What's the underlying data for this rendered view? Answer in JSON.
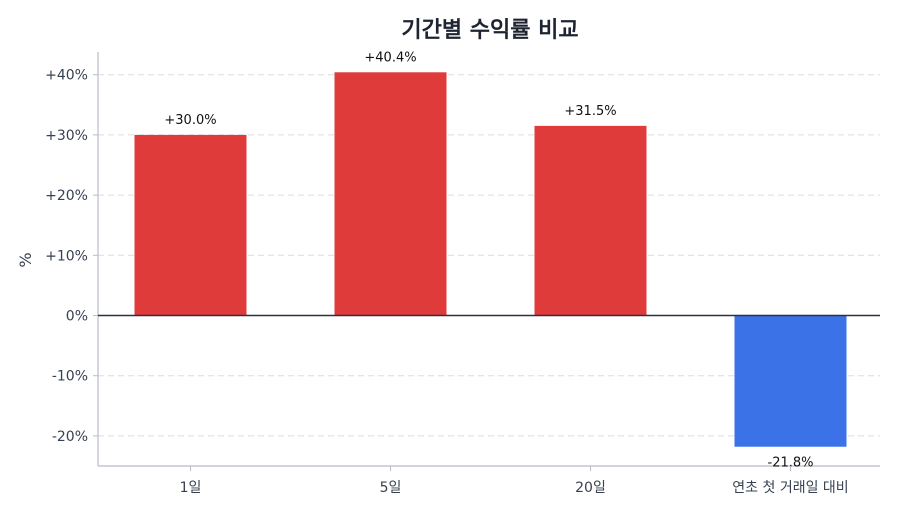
{
  "chart_data": {
    "type": "bar",
    "title": "기간별 수익률 비교",
    "xlabel": "",
    "ylabel": "%",
    "categories": [
      "1일",
      "5일",
      "20일",
      "연초 첫 거래일 대비"
    ],
    "values": [
      30.0,
      40.4,
      31.5,
      -21.8
    ],
    "value_labels": [
      "+30.0%",
      "+40.4%",
      "+31.5%",
      "-21.8%"
    ],
    "yticks": [
      40,
      30,
      20,
      10,
      0,
      -10,
      -20
    ],
    "ytick_labels": [
      "+40%",
      "+30%",
      "+20%",
      "+10%",
      "0%",
      "-10%",
      "-20%"
    ],
    "ylim": [
      -25,
      44
    ],
    "grid": true,
    "colors": {
      "positive": "#e03b3b",
      "negative": "#3b72e8"
    }
  }
}
